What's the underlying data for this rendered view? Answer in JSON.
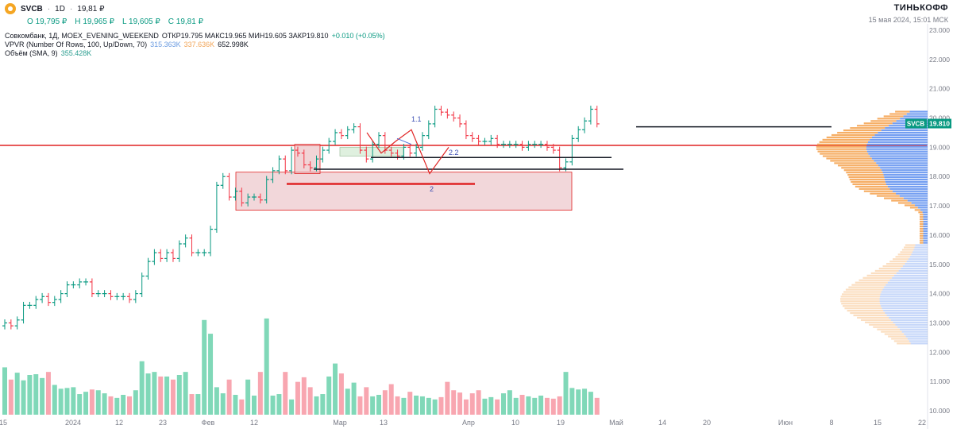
{
  "header": {
    "ticker": "SVCB",
    "timeframe": "1D",
    "price": "19,81 ₽",
    "ohlc": [
      {
        "label": "O",
        "value": "19,795 ₽"
      },
      {
        "label": "H",
        "value": "19,965 ₽"
      },
      {
        "label": "L",
        "value": "19,605 ₽"
      },
      {
        "label": "C",
        "value": "19,81 ₽"
      }
    ],
    "brand": "ТИНЬКОФФ",
    "datetime": "15 мая 2024, 15:01 МСК"
  },
  "indicators": {
    "main_name": "Совкомбанк, 1Д, MOEX_EVENING_WEEKEND",
    "main_stats": "ОТКР19.795  МАКС19.965  МИН19.605  ЗАКР19.810",
    "main_change": "+0.010 (+0.05%)",
    "vpvr_name": "VPVR (Number Of Rows, 100, Up/Down, 70)",
    "vpvr_up": "315.363K",
    "vpvr_down": "337.636K",
    "vpvr_total": "652.998K",
    "volume_name": "Объём (SMA, 9)",
    "volume_sma": "355.428K"
  },
  "colors": {
    "up": "#089981",
    "down": "#f23645",
    "vol_up": "#80d8b8",
    "vol_down": "#f8a6b0",
    "vpvr_up": "#5b8def",
    "vpvr_down": "#f4a04a",
    "level_red": "#e02424",
    "zone": "#e7b7bb"
  },
  "chart_data": {
    "type": "candlestick",
    "ylim": [
      10.0,
      23.0
    ],
    "y_ticks": [
      "23.000",
      "22.000",
      "21.000",
      "20.000",
      "19.000",
      "18.000",
      "17.000",
      "16.000",
      "15.000",
      "14.000",
      "13.000",
      "12.000",
      "11.000",
      "10.000"
    ],
    "x_ticks": [
      "15",
      "2024",
      "12",
      "23",
      "Фев",
      "12",
      "Мар",
      "13",
      "Апр",
      "10",
      "19",
      "Май",
      "14",
      "20",
      "Июн",
      "8",
      "15",
      "22"
    ],
    "current_price_label": "19.810",
    "current_price_ticker": "SVCB",
    "current_price": 19.81,
    "ohlc_close": [
      13.0,
      12.9,
      13.1,
      13.6,
      13.6,
      13.8,
      13.9,
      13.7,
      13.8,
      14.0,
      14.3,
      14.3,
      14.4,
      14.4,
      14.0,
      14.0,
      14.0,
      13.9,
      13.9,
      13.9,
      13.8,
      14.0,
      14.6,
      15.1,
      15.4,
      15.2,
      15.4,
      15.2,
      15.7,
      15.9,
      15.4,
      15.4,
      15.4,
      16.2,
      17.7,
      18.0,
      17.3,
      17.5,
      17.1,
      17.3,
      17.3,
      17.2,
      17.9,
      18.2,
      18.6,
      18.2,
      18.9,
      18.8,
      18.4,
      18.3,
      18.6,
      18.9,
      19.2,
      19.5,
      19.4,
      19.6,
      19.7,
      18.9,
      18.6,
      19.1,
      19.4,
      18.9,
      18.8,
      18.7,
      19.0,
      18.8,
      19.0,
      19.4,
      19.8,
      20.3,
      20.2,
      20.1,
      20.0,
      19.8,
      19.4,
      19.3,
      19.2,
      19.2,
      19.3,
      19.1,
      19.1,
      19.1,
      19.1,
      19.0,
      19.1,
      19.1,
      19.1,
      19.0,
      18.9,
      18.3,
      18.5,
      19.3,
      19.6,
      19.9,
      20.3,
      19.8
    ],
    "volume": [
      310,
      230,
      275,
      225,
      260,
      265,
      240,
      280,
      195,
      170,
      175,
      180,
      135,
      150,
      165,
      160,
      140,
      120,
      110,
      130,
      120,
      160,
      350,
      270,
      280,
      250,
      250,
      230,
      260,
      280,
      135,
      135,
      620,
      530,
      180,
      140,
      230,
      130,
      100,
      230,
      125,
      280,
      630,
      125,
      135,
      280,
      100,
      215,
      245,
      180,
      120,
      135,
      250,
      335,
      270,
      170,
      210,
      120,
      180,
      120,
      130,
      160,
      200,
      120,
      110,
      150,
      125,
      120,
      110,
      100,
      115,
      215,
      160,
      145,
      100,
      140,
      160,
      105,
      115,
      100,
      140,
      160,
      110,
      130,
      120,
      110,
      125,
      110,
      105,
      120,
      280,
      175,
      165,
      170,
      150,
      110
    ],
    "annotations": [
      "1.1",
      "2",
      "2.2"
    ],
    "vpvr": {
      "rows": 100,
      "up_total": "315.363K",
      "down_total": "337.636K"
    }
  }
}
